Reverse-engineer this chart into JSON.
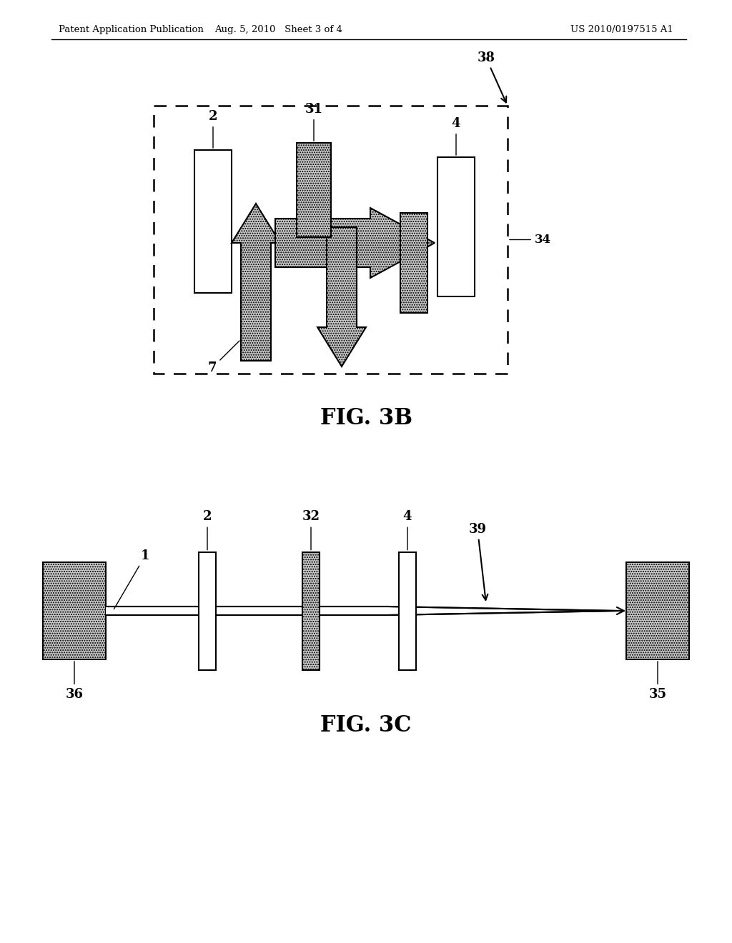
{
  "bg_color": "#ffffff",
  "header_left": "Patent Application Publication",
  "header_mid": "Aug. 5, 2010   Sheet 3 of 4",
  "header_right": "US 2010/0197515 A1",
  "fig3b_label": "FIG. 3B",
  "fig3c_label": "FIG. 3C"
}
